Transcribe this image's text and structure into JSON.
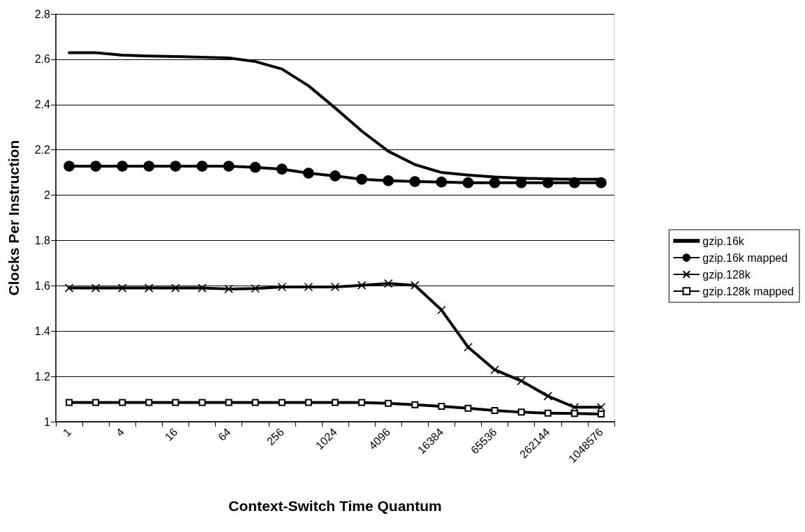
{
  "chart_data": {
    "type": "line",
    "xlabel": "Context-Switch Time Quantum",
    "ylabel": "Clocks Per Instruction",
    "categories": [
      "1",
      null,
      "4",
      null,
      "16",
      null,
      "64",
      null,
      "256",
      null,
      "1024",
      null,
      "4096",
      null,
      "16384",
      null,
      "65536",
      null,
      "262144",
      null,
      "1048576"
    ],
    "series": [
      {
        "name": "gzip.16k",
        "color": "#000000",
        "marker": "none",
        "values": [
          2.629,
          2.629,
          2.618,
          2.614,
          2.612,
          2.609,
          2.606,
          2.59,
          2.557,
          2.483,
          2.385,
          2.283,
          2.194,
          2.135,
          2.1,
          2.089,
          2.08,
          2.075,
          2.072,
          2.07,
          2.07
        ]
      },
      {
        "name": "gzip.16k mapped",
        "color": "#000000",
        "marker": "circle",
        "values": [
          2.128,
          2.128,
          2.128,
          2.128,
          2.128,
          2.128,
          2.128,
          2.123,
          2.115,
          2.097,
          2.085,
          2.07,
          2.064,
          2.06,
          2.058,
          2.055,
          2.055,
          2.055,
          2.055,
          2.055,
          2.055
        ]
      },
      {
        "name": "gzip.128k",
        "color": "#000000",
        "marker": "cross",
        "values": [
          1.59,
          1.59,
          1.59,
          1.59,
          1.59,
          1.59,
          1.586,
          1.588,
          1.595,
          1.595,
          1.595,
          1.602,
          1.61,
          1.602,
          1.493,
          1.329,
          1.229,
          1.18,
          1.113,
          1.064,
          1.064
        ]
      },
      {
        "name": "gzip.128k mapped",
        "color": "#000000",
        "marker": "square",
        "values": [
          1.085,
          1.085,
          1.085,
          1.085,
          1.085,
          1.085,
          1.085,
          1.085,
          1.085,
          1.085,
          1.085,
          1.085,
          1.081,
          1.075,
          1.068,
          1.059,
          1.049,
          1.042,
          1.038,
          1.036,
          1.034
        ]
      }
    ],
    "ylim": [
      1,
      2.8
    ],
    "yticks": [
      1,
      1.2,
      1.4,
      1.6,
      1.8,
      2,
      2.2,
      2.4,
      2.6,
      2.8
    ],
    "grid": "y",
    "legend": "right",
    "line_style": "solid"
  }
}
